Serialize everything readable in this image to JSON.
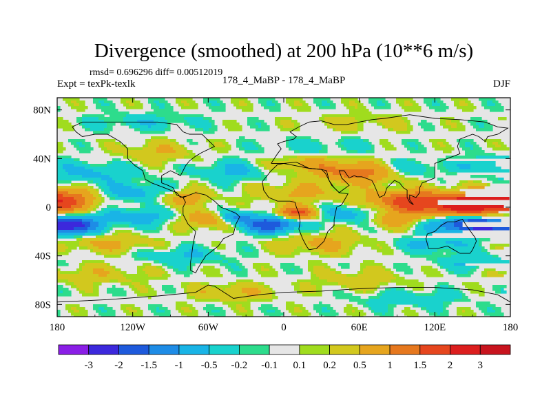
{
  "chart_data": {
    "type": "heatmap",
    "title": "Divergence (smoothed) at 200 hPa (10**6 m/s)",
    "stats_text": "rmsd= 0.696296 diff= 0.00512019",
    "left_label": "Expt = texPk-texlk",
    "center_label": "178_4_MaBP - 178_4_MaBP",
    "right_label": "DJF",
    "x_ticks": [
      {
        "label": "180",
        "value": -180
      },
      {
        "label": "120W",
        "value": -120
      },
      {
        "label": "60W",
        "value": -60
      },
      {
        "label": "0",
        "value": 0
      },
      {
        "label": "60E",
        "value": 60
      },
      {
        "label": "120E",
        "value": 120
      },
      {
        "label": "180",
        "value": 180
      }
    ],
    "y_ticks": [
      {
        "label": "80N",
        "value": 80
      },
      {
        "label": "40N",
        "value": 40
      },
      {
        "label": "0",
        "value": 0
      },
      {
        "label": "40S",
        "value": -40
      },
      {
        "label": "80S",
        "value": -80
      }
    ],
    "xlim": [
      -180,
      180
    ],
    "ylim": [
      -90,
      90
    ],
    "levels": [
      "-3",
      "-2",
      "-1.5",
      "-1",
      "-0.5",
      "-0.2",
      "-0.1",
      "0.1",
      "0.2",
      "0.5",
      "1",
      "1.5",
      "2",
      "3"
    ],
    "level_values": [
      -3,
      -2,
      -1.5,
      -1,
      -0.5,
      -0.2,
      -0.1,
      0.1,
      0.2,
      0.5,
      1,
      1.5,
      2,
      3
    ],
    "colors": [
      "#8a1ee6",
      "#3c28dc",
      "#1e5adc",
      "#1e8ce6",
      "#19b4e6",
      "#19d2cd",
      "#2ddc8c",
      "#e6e6e6",
      "#a0dc1e",
      "#d2c81e",
      "#e6a51e",
      "#e6781e",
      "#e6461e",
      "#dc1e1e",
      "#c8141e"
    ],
    "features": [
      {
        "lon": 150,
        "lat": 2,
        "slon": 28,
        "slat": 7,
        "amp": 2.6
      },
      {
        "lon": 95,
        "lat": 5,
        "slon": 22,
        "slat": 6,
        "amp": 1.4
      },
      {
        "lon": -170,
        "lat": 8,
        "slon": 18,
        "slat": 6,
        "amp": 1.0
      },
      {
        "lon": -120,
        "lat": 12,
        "slon": 22,
        "slat": 5,
        "amp": -0.8
      },
      {
        "lon": -80,
        "lat": 8,
        "slon": 15,
        "slat": 5,
        "amp": 0.8
      },
      {
        "lon": 10,
        "lat": 12,
        "slon": 25,
        "slat": 6,
        "amp": 0.6
      },
      {
        "lon": 60,
        "lat": 28,
        "slon": 22,
        "slat": 6,
        "amp": 1.2
      },
      {
        "lon": 100,
        "lat": 32,
        "slon": 20,
        "slat": 5,
        "amp": -0.5
      },
      {
        "lon": 160,
        "lat": 35,
        "slon": 15,
        "slat": 5,
        "amp": -0.6
      },
      {
        "lon": 20,
        "lat": 35,
        "slon": 25,
        "slat": 5,
        "amp": 0.6
      },
      {
        "lon": -40,
        "lat": 30,
        "slon": 20,
        "slat": 6,
        "amp": -0.6
      },
      {
        "lon": -150,
        "lat": 28,
        "slon": 25,
        "slat": 6,
        "amp": -0.6
      },
      {
        "lon": -100,
        "lat": 45,
        "slon": 20,
        "slat": 6,
        "amp": 0.5
      },
      {
        "lon": 30,
        "lat": 50,
        "slon": 30,
        "slat": 5,
        "amp": -0.3
      },
      {
        "lon": -170,
        "lat": -15,
        "slon": 15,
        "slat": 5,
        "amp": -2.2
      },
      {
        "lon": 150,
        "lat": -14,
        "slon": 22,
        "slat": 5,
        "amp": -2.4
      },
      {
        "lon": -10,
        "lat": -14,
        "slon": 15,
        "slat": 5,
        "amp": -2.0
      },
      {
        "lon": 10,
        "lat": -5,
        "slon": 12,
        "slat": 4,
        "amp": 1.8
      },
      {
        "lon": 50,
        "lat": -5,
        "slon": 18,
        "slat": 5,
        "amp": -0.8
      },
      {
        "lon": 90,
        "lat": -10,
        "slon": 15,
        "slat": 5,
        "amp": 0.8
      },
      {
        "lon": -120,
        "lat": -8,
        "slon": 22,
        "slat": 5,
        "amp": -0.8
      },
      {
        "lon": -60,
        "lat": -10,
        "slon": 15,
        "slat": 5,
        "amp": 1.0
      },
      {
        "lon": -40,
        "lat": -8,
        "slon": 10,
        "slat": 4,
        "amp": -1.2
      },
      {
        "lon": -140,
        "lat": -30,
        "slon": 25,
        "slat": 5,
        "amp": 0.6
      },
      {
        "lon": 30,
        "lat": -30,
        "slon": 25,
        "slat": 6,
        "amp": 0.6
      },
      {
        "lon": 120,
        "lat": -30,
        "slon": 22,
        "slat": 5,
        "amp": -0.6
      },
      {
        "lon": -80,
        "lat": -40,
        "slon": 25,
        "slat": 5,
        "amp": -0.5
      },
      {
        "lon": 150,
        "lat": -45,
        "slon": 20,
        "slat": 5,
        "amp": -0.5
      },
      {
        "lon": -150,
        "lat": -55,
        "slon": 30,
        "slat": 6,
        "amp": 0.4
      },
      {
        "lon": 60,
        "lat": -60,
        "slon": 25,
        "slat": 6,
        "amp": 0.4
      },
      {
        "lon": -40,
        "lat": -70,
        "slon": 25,
        "slat": 5,
        "amp": 0.5
      },
      {
        "lon": 100,
        "lat": -75,
        "slon": 30,
        "slat": 5,
        "amp": -0.4
      },
      {
        "lon": -110,
        "lat": 70,
        "slon": 30,
        "slat": 5,
        "amp": -0.4
      },
      {
        "lon": 60,
        "lat": 70,
        "slon": 30,
        "slat": 5,
        "amp": 0.3
      }
    ],
    "coastlines": [
      [
        [
          -168,
          66
        ],
        [
          -160,
          70
        ],
        [
          -140,
          70
        ],
        [
          -120,
          70
        ],
        [
          -100,
          70
        ],
        [
          -85,
          68
        ],
        [
          -80,
          62
        ],
        [
          -75,
          60
        ],
        [
          -65,
          60
        ],
        [
          -60,
          55
        ],
        [
          -55,
          50
        ],
        [
          -65,
          45
        ],
        [
          -70,
          42
        ],
        [
          -75,
          38
        ],
        [
          -78,
          34
        ],
        [
          -80,
          30
        ],
        [
          -82,
          26
        ],
        [
          -90,
          30
        ],
        [
          -97,
          26
        ],
        [
          -97,
          20
        ],
        [
          -92,
          18
        ],
        [
          -88,
          16
        ],
        [
          -85,
          10
        ],
        [
          -80,
          8
        ],
        [
          -78,
          9
        ],
        [
          -82,
          8
        ],
        [
          -85,
          12
        ],
        [
          -90,
          14
        ],
        [
          -95,
          16
        ],
        [
          -105,
          20
        ],
        [
          -110,
          23
        ],
        [
          -112,
          30
        ],
        [
          -118,
          34
        ],
        [
          -124,
          40
        ],
        [
          -124,
          48
        ],
        [
          -130,
          54
        ],
        [
          -140,
          60
        ],
        [
          -150,
          60
        ],
        [
          -160,
          58
        ],
        [
          -165,
          62
        ],
        [
          -168,
          66
        ]
      ],
      [
        [
          -80,
          8
        ],
        [
          -75,
          10
        ],
        [
          -70,
          12
        ],
        [
          -62,
          10
        ],
        [
          -55,
          5
        ],
        [
          -50,
          0
        ],
        [
          -45,
          -2
        ],
        [
          -38,
          -5
        ],
        [
          -35,
          -8
        ],
        [
          -38,
          -14
        ],
        [
          -40,
          -22
        ],
        [
          -48,
          -26
        ],
        [
          -52,
          -32
        ],
        [
          -57,
          -36
        ],
        [
          -62,
          -40
        ],
        [
          -65,
          -45
        ],
        [
          -68,
          -50
        ],
        [
          -70,
          -54
        ],
        [
          -74,
          -52
        ],
        [
          -74,
          -45
        ],
        [
          -73,
          -38
        ],
        [
          -72,
          -30
        ],
        [
          -70,
          -20
        ],
        [
          -76,
          -14
        ],
        [
          -80,
          -6
        ],
        [
          -80,
          0
        ],
        [
          -78,
          4
        ],
        [
          -80,
          8
        ]
      ],
      [
        [
          -10,
          36
        ],
        [
          -5,
          44
        ],
        [
          -2,
          48
        ],
        [
          -5,
          52
        ],
        [
          0,
          54
        ],
        [
          8,
          56
        ],
        [
          10,
          58
        ],
        [
          5,
          62
        ],
        [
          12,
          66
        ],
        [
          20,
          70
        ],
        [
          30,
          71
        ],
        [
          40,
          68
        ],
        [
          50,
          68
        ],
        [
          60,
          70
        ],
        [
          70,
          72
        ],
        [
          80,
          73
        ],
        [
          100,
          76
        ],
        [
          120,
          73
        ],
        [
          140,
          72
        ],
        [
          160,
          70
        ],
        [
          170,
          66
        ],
        [
          178,
          65
        ],
        [
          170,
          60
        ],
        [
          162,
          58
        ],
        [
          160,
          54
        ],
        [
          155,
          58
        ],
        [
          150,
          60
        ],
        [
          140,
          56
        ],
        [
          138,
          50
        ],
        [
          140,
          44
        ],
        [
          135,
          42
        ],
        [
          130,
          40
        ],
        [
          125,
          38
        ],
        [
          120,
          36
        ],
        [
          120,
          30
        ],
        [
          120,
          24
        ],
        [
          110,
          20
        ],
        [
          108,
          16
        ],
        [
          108,
          12
        ],
        [
          105,
          8
        ],
        [
          100,
          10
        ],
        [
          100,
          6
        ],
        [
          103,
          2
        ],
        [
          100,
          4
        ],
        [
          98,
          8
        ],
        [
          98,
          14
        ],
        [
          95,
          16
        ],
        [
          92,
          20
        ],
        [
          88,
          22
        ],
        [
          82,
          16
        ],
        [
          80,
          10
        ],
        [
          76,
          8
        ],
        [
          72,
          18
        ],
        [
          70,
          22
        ],
        [
          62,
          25
        ],
        [
          58,
          25
        ],
        [
          56,
          26
        ],
        [
          52,
          24
        ],
        [
          48,
          30
        ],
        [
          44,
          30
        ],
        [
          46,
          24
        ],
        [
          52,
          18
        ],
        [
          44,
          12
        ],
        [
          40,
          16
        ],
        [
          36,
          22
        ],
        [
          34,
          30
        ],
        [
          30,
          31
        ],
        [
          20,
          32
        ],
        [
          10,
          34
        ],
        [
          0,
          36
        ],
        [
          -10,
          36
        ]
      ],
      [
        [
          -17,
          21
        ],
        [
          -16,
          14
        ],
        [
          -12,
          8
        ],
        [
          -5,
          5
        ],
        [
          5,
          5
        ],
        [
          9,
          4
        ],
        [
          10,
          0
        ],
        [
          12,
          -5
        ],
        [
          13,
          -12
        ],
        [
          12,
          -18
        ],
        [
          15,
          -26
        ],
        [
          18,
          -32
        ],
        [
          20,
          -35
        ],
        [
          26,
          -34
        ],
        [
          32,
          -28
        ],
        [
          35,
          -20
        ],
        [
          40,
          -15
        ],
        [
          40,
          -10
        ],
        [
          42,
          0
        ],
        [
          46,
          2
        ],
        [
          51,
          11
        ],
        [
          44,
          12
        ],
        [
          38,
          18
        ],
        [
          33,
          28
        ],
        [
          30,
          31
        ],
        [
          20,
          32
        ],
        [
          10,
          37
        ],
        [
          0,
          36
        ],
        [
          -5,
          35
        ],
        [
          -10,
          30
        ],
        [
          -17,
          21
        ]
      ],
      [
        [
          114,
          -22
        ],
        [
          113,
          -26
        ],
        [
          115,
          -34
        ],
        [
          122,
          -34
        ],
        [
          130,
          -32
        ],
        [
          135,
          -35
        ],
        [
          140,
          -38
        ],
        [
          148,
          -38
        ],
        [
          150,
          -35
        ],
        [
          153,
          -28
        ],
        [
          152,
          -25
        ],
        [
          145,
          -15
        ],
        [
          142,
          -10
        ],
        [
          136,
          -12
        ],
        [
          130,
          -12
        ],
        [
          125,
          -15
        ],
        [
          120,
          -20
        ],
        [
          114,
          -22
        ]
      ],
      [
        [
          -180,
          -78
        ],
        [
          -140,
          -76
        ],
        [
          -100,
          -73
        ],
        [
          -70,
          -70
        ],
        [
          -60,
          -64
        ],
        [
          -55,
          -65
        ],
        [
          -40,
          -75
        ],
        [
          -20,
          -72
        ],
        [
          0,
          -70
        ],
        [
          30,
          -69
        ],
        [
          60,
          -67
        ],
        [
          90,
          -66
        ],
        [
          120,
          -66
        ],
        [
          150,
          -68
        ],
        [
          170,
          -72
        ],
        [
          180,
          -78
        ]
      ]
    ]
  }
}
